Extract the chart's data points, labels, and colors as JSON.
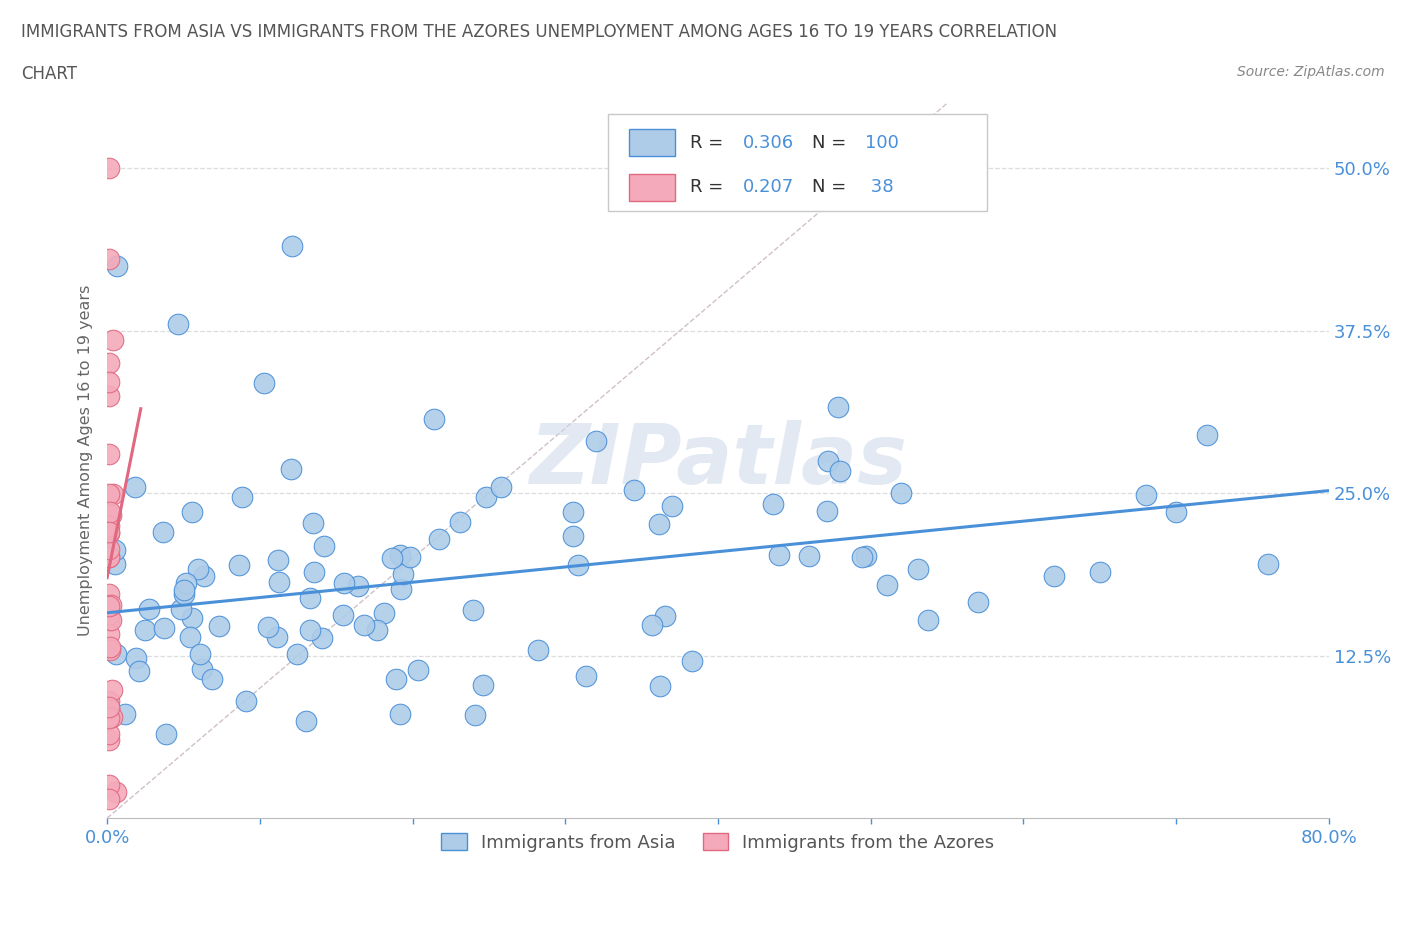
{
  "title_line1": "IMMIGRANTS FROM ASIA VS IMMIGRANTS FROM THE AZORES UNEMPLOYMENT AMONG AGES 16 TO 19 YEARS CORRELATION",
  "title_line2": "CHART",
  "source_text": "Source: ZipAtlas.com",
  "ylabel": "Unemployment Among Ages 16 to 19 years",
  "xlim": [
    0.0,
    0.8
  ],
  "ylim": [
    0.0,
    0.55
  ],
  "ytick_positions": [
    0.125,
    0.25,
    0.375,
    0.5
  ],
  "ytick_labels": [
    "12.5%",
    "25.0%",
    "37.5%",
    "50.0%"
  ],
  "color_asia": "#aecce8",
  "color_azores": "#f4aaba",
  "trendline_asia": "#4a90d9",
  "trendline_azores": "#e06880",
  "trendline_dashed_color": "#d0c0c8",
  "R_asia": 0.306,
  "N_asia": 100,
  "R_azores": 0.207,
  "N_azores": 38,
  "legend_label_asia": "Immigrants from Asia",
  "legend_label_azores": "Immigrants from the Azores",
  "watermark": "ZIPatlas",
  "background_color": "#ffffff",
  "grid_color": "#dddddd",
  "asia_trend_x0": 0.0,
  "asia_trend_x1": 0.8,
  "asia_trend_y0": 0.158,
  "asia_trend_y1": 0.252,
  "azores_trend_x0": 0.0,
  "azores_trend_x1": 0.022,
  "azores_trend_y0": 0.185,
  "azores_trend_y1": 0.315
}
